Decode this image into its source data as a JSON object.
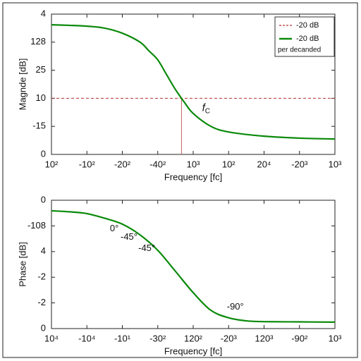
{
  "chart_data": [
    {
      "type": "line",
      "ylabel": "Magnde [dB]",
      "xlabel": "Frequency [fc]",
      "xlim": [
        0,
        8
      ],
      "xticks": [
        {
          "value": 0,
          "label": "10²"
        },
        {
          "value": 1,
          "label": "-10²"
        },
        {
          "value": 2,
          "label": "-20²"
        },
        {
          "value": 3,
          "label": "-40²"
        },
        {
          "value": 4,
          "label": "10³"
        },
        {
          "value": 5,
          "label": "10²"
        },
        {
          "value": 6,
          "label": "20⁴"
        },
        {
          "value": 7,
          "label": "-20³"
        },
        {
          "value": 8,
          "label": "10³"
        }
      ],
      "ylim": [
        0,
        5
      ],
      "yticks": [
        0,
        {
          "value": 1,
          "label": "-15"
        },
        {
          "value": 2,
          "label": "10"
        },
        {
          "value": 3,
          "label": "25"
        },
        {
          "value": 4,
          "label": "128"
        },
        {
          "value": 5,
          "label": "4"
        }
      ],
      "x": [
        0,
        0.5,
        1,
        1.5,
        2,
        2.5,
        2.75,
        3,
        3.25,
        3.5,
        3.75,
        4,
        4.5,
        5,
        6,
        7,
        8
      ],
      "series": [
        {
          "name": "-20 dB",
          "color": "#0a8a0a",
          "values": [
            4.62,
            4.6,
            4.57,
            4.5,
            4.32,
            4.0,
            3.69,
            3.37,
            2.84,
            2.31,
            1.86,
            1.46,
            1.0,
            0.8,
            0.65,
            0.58,
            0.55
          ]
        }
      ],
      "legend_note": "per decanded",
      "hline": {
        "value": 2,
        "name": "-20 dB",
        "color": "#b03030"
      },
      "vline": {
        "value": 3.67,
        "color": "#c06060"
      },
      "annotations": [
        {
          "text": "f",
          "sub": "C",
          "x": 4.25,
          "y": 1.65
        }
      ]
    },
    {
      "type": "line",
      "ylabel": "Phase [dB]",
      "xlabel": "Frequency [fc]",
      "xlim": [
        0,
        8
      ],
      "xticks": [
        {
          "value": 0,
          "label": "10⁴"
        },
        {
          "value": 1,
          "label": "-10⁴"
        },
        {
          "value": 2,
          "label": "-10¹"
        },
        {
          "value": 3,
          "label": "-30²"
        },
        {
          "value": 4,
          "label": "120²"
        },
        {
          "value": 5,
          "label": "-20³"
        },
        {
          "value": 6,
          "label": "120³"
        },
        {
          "value": 7,
          "label": "-90²"
        },
        {
          "value": 8,
          "label": "10³"
        }
      ],
      "ylim": [
        0,
        5
      ],
      "yticks": [
        0,
        {
          "value": 1,
          "label": "-2"
        },
        {
          "value": 2,
          "label": "-2"
        },
        {
          "value": 3,
          "label": "4"
        },
        {
          "value": 4,
          "label": "-108"
        },
        {
          "value": 5,
          "label": "0"
        }
      ],
      "x": [
        0,
        0.5,
        1,
        1.5,
        2,
        2.5,
        3,
        3.5,
        4,
        4.5,
        5,
        5.5,
        6,
        7,
        8
      ],
      "series": [
        {
          "color": "#0a8a0a",
          "values": [
            4.59,
            4.55,
            4.48,
            4.3,
            4.07,
            3.65,
            3.05,
            2.23,
            1.4,
            0.71,
            0.42,
            0.3,
            0.27,
            0.26,
            0.25
          ]
        }
      ],
      "annotations": [
        {
          "text": "0°",
          "x": 1.65,
          "y": 3.88
        },
        {
          "text": "-45°",
          "x": 1.95,
          "y": 3.55
        },
        {
          "text": "-45°",
          "x": 2.45,
          "y": 3.1
        },
        {
          "text": "-90°",
          "x": 4.95,
          "y": 0.83
        }
      ]
    }
  ]
}
